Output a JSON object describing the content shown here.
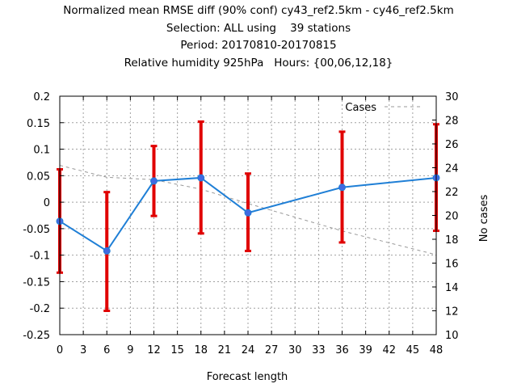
{
  "chart_data": {
    "type": "line",
    "title_lines": [
      "Normalized mean RMSE diff (90% conf) cy43_ref2.5km - cy46_ref2.5km",
      "Selection: ALL using    39 stations",
      "Period: 20170810-20170815",
      "Relative humidity 925hPa   Hours: {00,06,12,18}"
    ],
    "xlabel": "Forecast length",
    "ylabel": "",
    "y2label": "No cases",
    "xlim": [
      0,
      48
    ],
    "ylim": [
      -0.25,
      0.2
    ],
    "y2lim": [
      10,
      30
    ],
    "x_ticks": [
      "0",
      "3",
      "6",
      "9",
      "12",
      "15",
      "18",
      "21",
      "24",
      "27",
      "30",
      "33",
      "36",
      "39",
      "42",
      "45",
      "48"
    ],
    "y_ticks": [
      "0.2",
      "0.15",
      "0.1",
      "0.05",
      "0",
      "-0.05",
      "-0.1",
      "-0.15",
      "-0.2",
      "-0.25"
    ],
    "y2_ticks": [
      "30",
      "28",
      "26",
      "24",
      "22",
      "20",
      "18",
      "16",
      "14",
      "12",
      "10"
    ],
    "grid": true,
    "legend_position": "top-right",
    "series": [
      {
        "name": "",
        "color": "#1f7fd6",
        "marker_color": "#4169e1",
        "x": [
          0,
          6,
          12,
          18,
          24,
          36,
          48
        ],
        "values": [
          -0.036,
          -0.092,
          0.04,
          0.046,
          -0.02,
          0.028,
          0.046
        ],
        "error_low": [
          -0.133,
          -0.205,
          -0.026,
          -0.059,
          -0.092,
          -0.076,
          -0.054
        ],
        "error_high": [
          0.062,
          0.019,
          0.106,
          0.152,
          0.054,
          0.133,
          0.147
        ],
        "error_color": "#e00000"
      },
      {
        "name": "Cases",
        "axis": "right",
        "color": "#999999",
        "dashed": true,
        "x": [
          0,
          6,
          12,
          18,
          24,
          36,
          48
        ],
        "values": [
          24.2,
          23.2,
          23.0,
          22.2,
          21.0,
          18.7,
          16.7
        ]
      }
    ]
  }
}
